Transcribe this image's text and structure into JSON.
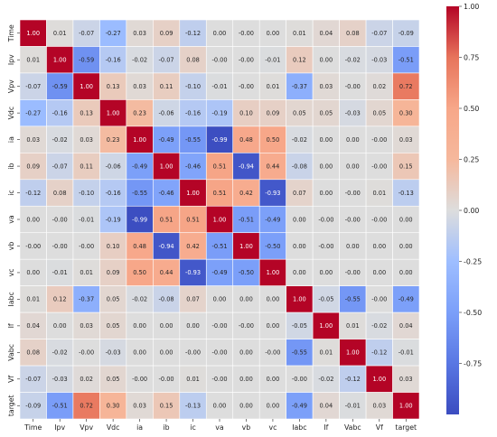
{
  "chart_data": {
    "type": "heatmap",
    "title": "",
    "xlabel": "",
    "ylabel": "",
    "labels": [
      "Time",
      "Ipv",
      "Vpv",
      "Vdc",
      "ia",
      "ib",
      "ic",
      "va",
      "vb",
      "vc",
      "Iabc",
      "If",
      "Vabc",
      "Vf",
      "target"
    ],
    "matrix": [
      [
        "1.00",
        "0.01",
        "-0.07",
        "-0.27",
        "0.03",
        "0.09",
        "-0.12",
        "0.00",
        "-0.00",
        "0.00",
        "0.01",
        "0.04",
        "0.08",
        "-0.07",
        "-0.09"
      ],
      [
        "0.01",
        "1.00",
        "-0.59",
        "-0.16",
        "-0.02",
        "-0.07",
        "0.08",
        "-0.00",
        "-0.00",
        "-0.01",
        "0.12",
        "0.00",
        "-0.02",
        "-0.03",
        "-0.51"
      ],
      [
        "-0.07",
        "-0.59",
        "1.00",
        "0.13",
        "0.03",
        "0.11",
        "-0.10",
        "-0.01",
        "-0.00",
        "0.01",
        "-0.37",
        "0.03",
        "-0.00",
        "0.02",
        "0.72"
      ],
      [
        "-0.27",
        "-0.16",
        "0.13",
        "1.00",
        "0.23",
        "-0.06",
        "-0.16",
        "-0.19",
        "0.10",
        "0.09",
        "0.05",
        "0.05",
        "-0.03",
        "0.05",
        "0.30"
      ],
      [
        "0.03",
        "-0.02",
        "0.03",
        "0.23",
        "1.00",
        "-0.49",
        "-0.55",
        "-0.99",
        "0.48",
        "0.50",
        "-0.02",
        "0.00",
        "0.00",
        "-0.00",
        "0.03"
      ],
      [
        "0.09",
        "-0.07",
        "0.11",
        "-0.06",
        "-0.49",
        "1.00",
        "-0.46",
        "0.51",
        "-0.94",
        "0.44",
        "-0.08",
        "0.00",
        "0.00",
        "-0.00",
        "0.15"
      ],
      [
        "-0.12",
        "0.08",
        "-0.10",
        "-0.16",
        "-0.55",
        "-0.46",
        "1.00",
        "0.51",
        "0.42",
        "-0.93",
        "0.07",
        "0.00",
        "-0.00",
        "0.01",
        "-0.13"
      ],
      [
        "0.00",
        "-0.00",
        "-0.01",
        "-0.19",
        "-0.99",
        "0.51",
        "0.51",
        "1.00",
        "-0.51",
        "-0.49",
        "0.00",
        "-0.00",
        "-0.00",
        "-0.00",
        "0.00"
      ],
      [
        "-0.00",
        "-0.00",
        "-0.00",
        "0.10",
        "0.48",
        "-0.94",
        "0.42",
        "-0.51",
        "1.00",
        "-0.50",
        "0.00",
        "-0.00",
        "0.00",
        "0.00",
        "0.00"
      ],
      [
        "0.00",
        "-0.01",
        "0.01",
        "0.09",
        "0.50",
        "0.44",
        "-0.93",
        "-0.49",
        "-0.50",
        "1.00",
        "0.00",
        "0.00",
        "-0.00",
        "0.00",
        "0.00"
      ],
      [
        "0.01",
        "0.12",
        "-0.37",
        "0.05",
        "-0.02",
        "-0.08",
        "0.07",
        "0.00",
        "0.00",
        "0.00",
        "1.00",
        "-0.05",
        "-0.55",
        "-0.00",
        "-0.49"
      ],
      [
        "0.04",
        "0.00",
        "0.03",
        "0.05",
        "0.00",
        "0.00",
        "0.00",
        "-0.00",
        "-0.00",
        "0.00",
        "-0.05",
        "1.00",
        "0.01",
        "-0.02",
        "0.04"
      ],
      [
        "0.08",
        "-0.02",
        "-0.00",
        "-0.03",
        "0.00",
        "0.00",
        "-0.00",
        "-0.00",
        "0.00",
        "-0.00",
        "-0.55",
        "0.01",
        "1.00",
        "-0.12",
        "-0.01"
      ],
      [
        "-0.07",
        "-0.03",
        "0.02",
        "0.05",
        "-0.00",
        "-0.00",
        "0.01",
        "-0.00",
        "0.00",
        "0.00",
        "-0.00",
        "-0.02",
        "-0.12",
        "1.00",
        "0.03"
      ],
      [
        "-0.09",
        "-0.51",
        "0.72",
        "0.30",
        "0.03",
        "0.15",
        "-0.13",
        "0.00",
        "0.00",
        "0.00",
        "-0.49",
        "0.04",
        "-0.01",
        "0.03",
        "1.00"
      ]
    ],
    "colormap": "coolwarm",
    "vmin": -1,
    "vmax": 1,
    "colorbar_ticks": [
      "1.00",
      "0.75",
      "0.50",
      "0.25",
      "0.00",
      "-0.25",
      "-0.50",
      "-0.75"
    ],
    "colorbar_tick_values": [
      1.0,
      0.75,
      0.5,
      0.25,
      0.0,
      -0.25,
      -0.5,
      -0.75
    ],
    "grid_line_color": "#ffffff"
  }
}
